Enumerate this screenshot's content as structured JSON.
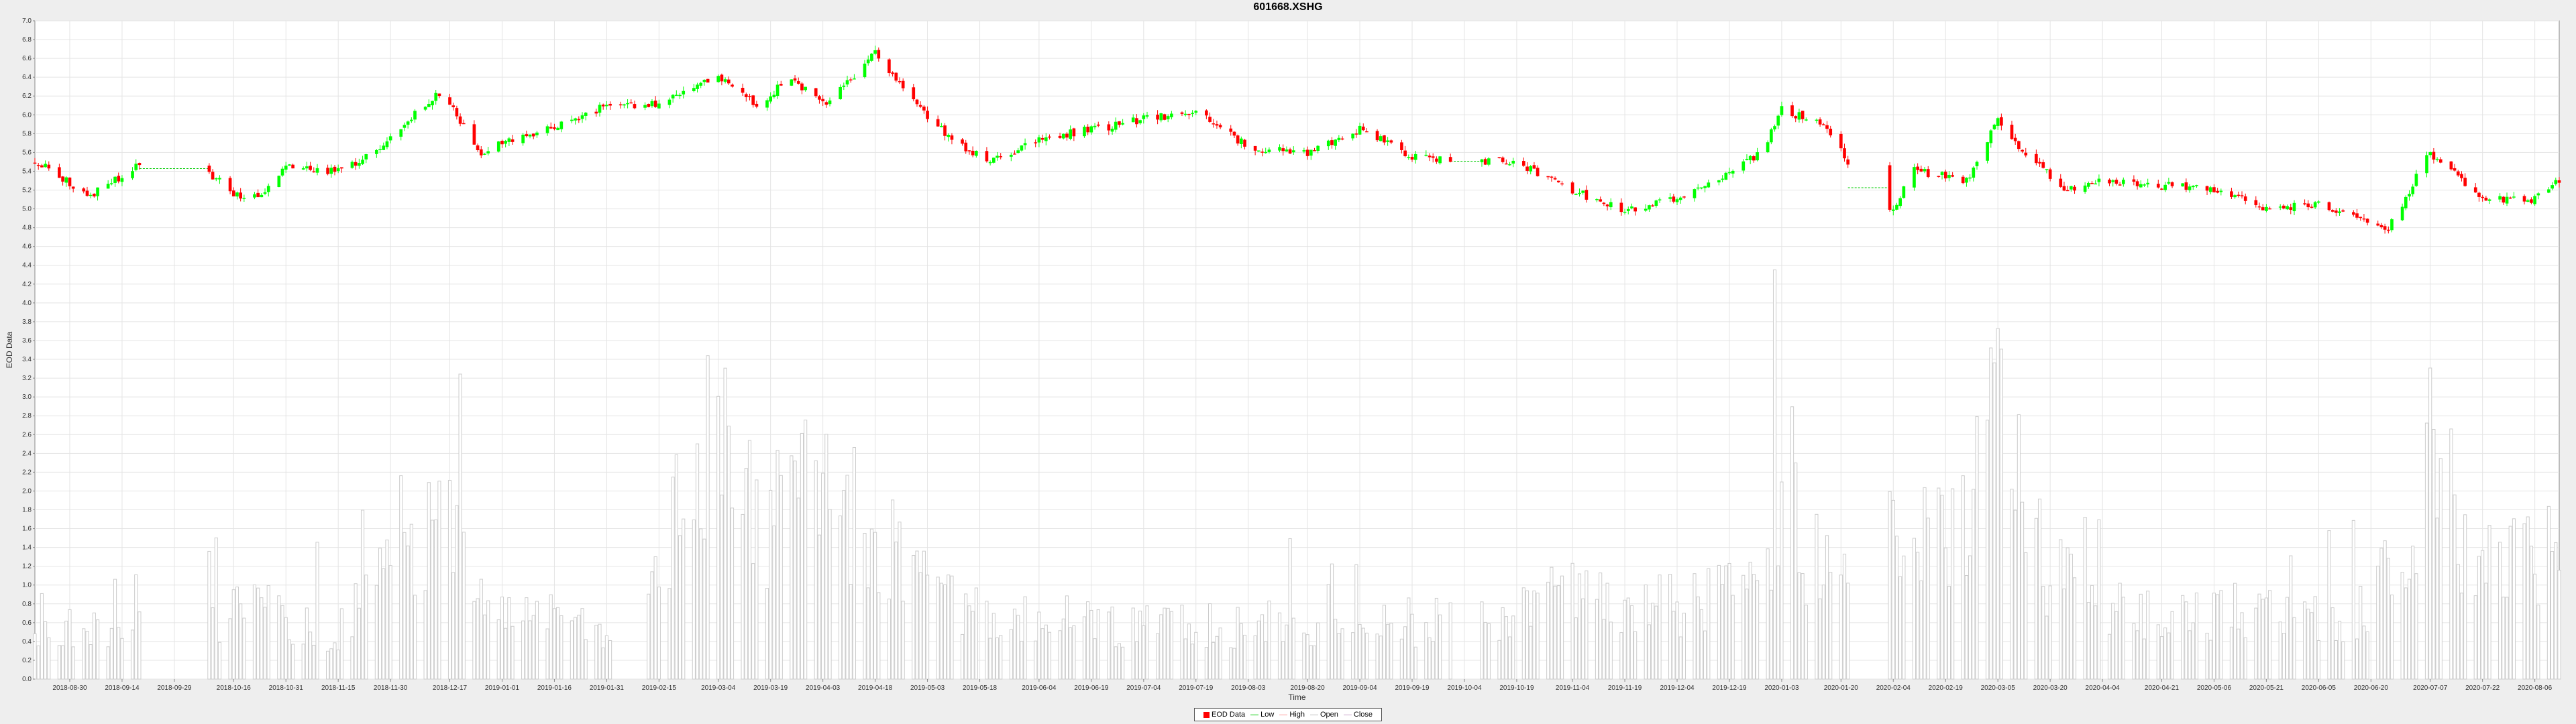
{
  "chart_data": {
    "type": "candlestick",
    "title": "601668.XSHG",
    "xlabel": "Time",
    "ylabel": "EOD Data",
    "ylim": [
      0.0,
      7.0
    ],
    "yticks": [
      "0.0",
      "0.2",
      "0.4",
      "0.6",
      "0.8",
      "1.0",
      "1.2",
      "1.4",
      "1.6",
      "1.8",
      "2.0",
      "2.2",
      "2.4",
      "2.6",
      "2.8",
      "3.0",
      "3.2",
      "3.4",
      "3.6",
      "3.8",
      "4.0",
      "4.2",
      "4.4",
      "4.6",
      "4.8",
      "5.0",
      "5.2",
      "5.4",
      "5.6",
      "5.8",
      "6.0",
      "6.2",
      "6.4",
      "6.6",
      "6.8",
      "7.0"
    ],
    "xticks": [
      "2018-08-30",
      "2018-09-14",
      "2018-09-29",
      "2018-10-16",
      "2018-10-31",
      "2018-11-15",
      "2018-11-30",
      "2018-12-17",
      "2019-01-01",
      "2019-01-16",
      "2019-01-31",
      "2019-02-15",
      "2019-03-04",
      "2019-03-19",
      "2019-04-03",
      "2019-04-18",
      "2019-05-03",
      "2019-05-18",
      "2019-06-04",
      "2019-06-19",
      "2019-07-04",
      "2019-07-19",
      "2019-08-03",
      "2019-08-20",
      "2019-09-04",
      "2019-09-19",
      "2019-10-04",
      "2019-10-19",
      "2019-11-04",
      "2019-11-19",
      "2019-12-04",
      "2019-12-19",
      "2020-01-03",
      "2020-01-20",
      "2020-02-04",
      "2020-02-19",
      "2020-03-05",
      "2020-03-20",
      "2020-04-04",
      "2020-04-21",
      "2020-05-06",
      "2020-05-21",
      "2020-06-05",
      "2020-06-20",
      "2020-07-07",
      "2020-07-22",
      "2020-08-06"
    ],
    "grid": true,
    "legend_placement": "bottom-center",
    "legend": [
      {
        "label": "EOD Data",
        "kind": "swatch",
        "color": "#ff0000"
      },
      {
        "label": "Low",
        "kind": "line",
        "color": "#00cc00"
      },
      {
        "label": "High",
        "kind": "line",
        "color": "#ff9999"
      },
      {
        "label": "Open",
        "kind": "line",
        "color": "#bbbbbb"
      },
      {
        "label": "Close",
        "kind": "line",
        "color": "#c8a0c8"
      }
    ],
    "colors": {
      "up": "#00ff00",
      "down": "#ff0000",
      "volume": "#cccccc",
      "flat": "#00cc00"
    },
    "price_anchors": [
      [
        "2018-08-20",
        5.5
      ],
      [
        "2018-09-05",
        5.15
      ],
      [
        "2018-09-20",
        5.5
      ],
      [
        "2018-10-05",
        5.5
      ],
      [
        "2018-10-20",
        5.05
      ],
      [
        "2018-11-01",
        5.45
      ],
      [
        "2018-11-15",
        5.4
      ],
      [
        "2018-11-25",
        5.6
      ],
      [
        "2018-12-05",
        5.95
      ],
      [
        "2018-12-15",
        6.25
      ],
      [
        "2018-12-25",
        5.6
      ],
      [
        "2019-01-10",
        5.8
      ],
      [
        "2019-01-31",
        6.1
      ],
      [
        "2019-02-15",
        6.1
      ],
      [
        "2019-03-04",
        6.4
      ],
      [
        "2019-03-15",
        6.1
      ],
      [
        "2019-03-25",
        6.4
      ],
      [
        "2019-04-03",
        6.1
      ],
      [
        "2019-04-18",
        6.65
      ],
      [
        "2019-04-28",
        6.2
      ],
      [
        "2019-05-08",
        5.8
      ],
      [
        "2019-05-20",
        5.5
      ],
      [
        "2019-06-05",
        5.75
      ],
      [
        "2019-06-20",
        5.85
      ],
      [
        "2019-07-04",
        5.95
      ],
      [
        "2019-07-19",
        6.05
      ],
      [
        "2019-08-03",
        5.65
      ],
      [
        "2019-08-20",
        5.6
      ],
      [
        "2019-09-04",
        5.85
      ],
      [
        "2019-09-19",
        5.55
      ],
      [
        "2019-10-04",
        5.5
      ],
      [
        "2019-10-19",
        5.5
      ],
      [
        "2019-11-04",
        5.2
      ],
      [
        "2019-11-19",
        4.98
      ],
      [
        "2019-12-04",
        5.1
      ],
      [
        "2019-12-19",
        5.4
      ],
      [
        "2019-12-28",
        5.6
      ],
      [
        "2020-01-03",
        6.05
      ],
      [
        "2020-01-15",
        5.9
      ],
      [
        "2020-01-22",
        5.5
      ],
      [
        "2020-02-03",
        4.95
      ],
      [
        "2020-02-10",
        5.4
      ],
      [
        "2020-02-25",
        5.3
      ],
      [
        "2020-03-05",
        5.95
      ],
      [
        "2020-03-15",
        5.5
      ],
      [
        "2020-03-25",
        5.2
      ],
      [
        "2020-04-04",
        5.3
      ],
      [
        "2020-04-21",
        5.25
      ],
      [
        "2020-05-06",
        5.2
      ],
      [
        "2020-05-21",
        5.0
      ],
      [
        "2020-06-05",
        5.05
      ],
      [
        "2020-06-25",
        4.8
      ],
      [
        "2020-07-07",
        5.6
      ],
      [
        "2020-07-22",
        5.1
      ],
      [
        "2020-08-06",
        5.1
      ],
      [
        "2020-08-13",
        5.3
      ]
    ],
    "volume_anchors": [
      [
        "2018-08-20",
        0.55
      ],
      [
        "2018-09-10",
        0.5
      ],
      [
        "2018-09-18",
        0.9
      ],
      [
        "2018-10-05",
        0.6
      ],
      [
        "2018-10-25",
        0.75
      ],
      [
        "2018-11-15",
        0.5
      ],
      [
        "2018-12-01",
        1.2
      ],
      [
        "2018-12-15",
        1.6
      ],
      [
        "2018-12-28",
        0.7
      ],
      [
        "2019-01-20",
        0.6
      ],
      [
        "2019-02-10",
        0.6
      ],
      [
        "2019-02-25",
        2.2
      ],
      [
        "2019-03-04",
        3.0
      ],
      [
        "2019-03-15",
        1.6
      ],
      [
        "2019-04-03",
        2.2
      ],
      [
        "2019-04-18",
        1.5
      ],
      [
        "2019-05-03",
        1.0
      ],
      [
        "2019-05-18",
        0.75
      ],
      [
        "2019-06-20",
        0.6
      ],
      [
        "2019-07-19",
        0.55
      ],
      [
        "2019-08-20",
        0.6
      ],
      [
        "2019-09-04",
        0.9
      ],
      [
        "2019-09-19",
        0.6
      ],
      [
        "2019-10-19",
        0.7
      ],
      [
        "2019-11-04",
        1.0
      ],
      [
        "2019-11-19",
        0.7
      ],
      [
        "2019-12-19",
        0.9
      ],
      [
        "2020-01-03",
        1.8
      ],
      [
        "2020-01-20",
        0.9
      ],
      [
        "2020-02-04",
        1.5
      ],
      [
        "2020-02-19",
        1.6
      ],
      [
        "2020-03-05",
        2.6
      ],
      [
        "2020-03-20",
        1.1
      ],
      [
        "2020-04-21",
        0.6
      ],
      [
        "2020-05-21",
        0.7
      ],
      [
        "2020-06-20",
        0.7
      ],
      [
        "2020-07-07",
        2.3
      ],
      [
        "2020-07-22",
        1.2
      ],
      [
        "2020-08-13",
        1.3
      ]
    ],
    "date_range": [
      "2018-08-20",
      "2020-08-13"
    ],
    "flat_segments": [
      [
        "2018-09-20",
        "2018-10-08"
      ],
      [
        "2019-10-01",
        "2019-10-08"
      ],
      [
        "2020-01-23",
        "2020-02-02"
      ]
    ],
    "volume_gaps": [
      [
        "2018-09-20",
        "2018-10-08"
      ],
      [
        "2019-02-02",
        "2019-02-11"
      ],
      [
        "2019-10-01",
        "2019-10-08"
      ],
      [
        "2020-01-23",
        "2020-02-02"
      ]
    ]
  }
}
